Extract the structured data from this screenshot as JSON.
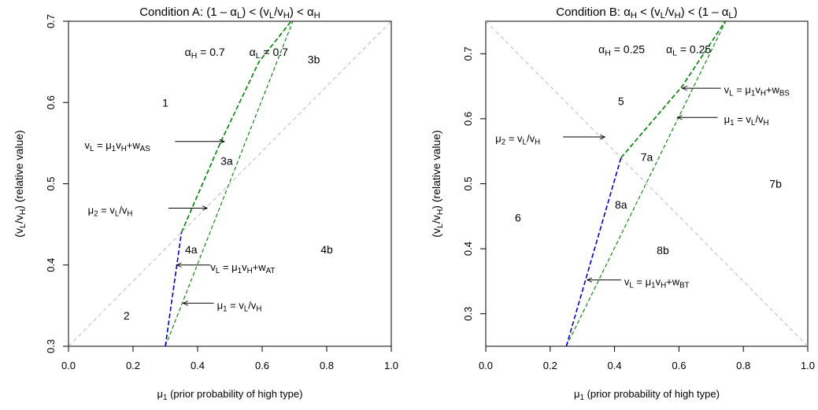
{
  "chart_data": [
    {
      "type": "line",
      "title": "Condition A: (1 – αL) < (vL/vH) < αH",
      "title_parts": [
        "Condition A: (1 – ",
        "α",
        "L",
        ") < (v",
        "L",
        "/v",
        "H",
        ") < ",
        "α",
        "H"
      ],
      "xlabel": "μ1 (prior probability of high type)",
      "xlabel_parts": [
        "μ",
        "1",
        " (prior probability of high type)"
      ],
      "ylabel": "(vL/vH) (relative value)",
      "ylabel_parts": [
        "(v",
        "L",
        "/v",
        "H",
        ") (relative value)"
      ],
      "xlim": [
        0,
        1
      ],
      "ylim": [
        0.3,
        0.7
      ],
      "xticks": [
        0.0,
        0.2,
        0.4,
        0.6,
        0.8,
        1.0
      ],
      "yticks": [
        0.3,
        0.4,
        0.5,
        0.6,
        0.7
      ],
      "grid": false,
      "series": [
        {
          "color": "#bbbbbb",
          "dash": "5,4",
          "width": 1,
          "points": [
            [
              0,
              0.3
            ],
            [
              1,
              0.7
            ]
          ]
        },
        {
          "color": "#008000",
          "dash": "6,3",
          "width": 1.6,
          "points": [
            [
              0.35,
              0.44
            ],
            [
              0.47,
              0.55
            ],
            [
              0.59,
              0.65
            ],
            [
              0.7,
              0.705
            ]
          ]
        },
        {
          "color": "#008000",
          "dash": "5,3",
          "width": 1.1,
          "points": [
            [
              0.3,
              0.3
            ],
            [
              0.7,
              0.705
            ]
          ]
        },
        {
          "color": "#0000c8",
          "dash": "6,3",
          "width": 1.6,
          "points": [
            [
              0.3,
              0.3
            ],
            [
              0.35,
              0.44
            ]
          ]
        }
      ],
      "params": [
        {
          "parts": [
            "α",
            "H",
            " =  0.7"
          ],
          "x": 0.36,
          "y": 0.662
        },
        {
          "parts": [
            "α",
            "L",
            " =  0.7"
          ],
          "x": 0.56,
          "y": 0.662
        }
      ],
      "regions": [
        {
          "label": "1",
          "x": 0.3,
          "y": 0.6
        },
        {
          "label": "3b",
          "x": 0.76,
          "y": 0.653
        },
        {
          "label": "3a",
          "x": 0.49,
          "y": 0.528
        },
        {
          "label": "4a",
          "x": 0.38,
          "y": 0.419
        },
        {
          "label": "4b",
          "x": 0.8,
          "y": 0.419
        },
        {
          "label": "2",
          "x": 0.18,
          "y": 0.338
        }
      ],
      "annotations": [
        {
          "parts": [
            "v",
            "L",
            " = ",
            "μ",
            "1",
            "v",
            "H",
            "+w",
            "AS"
          ],
          "text_x": 0.05,
          "text_y": 0.548,
          "from": [
            0.33,
            0.552
          ],
          "to": [
            0.483,
            0.552
          ]
        },
        {
          "parts": [
            "μ",
            "2",
            " = v",
            "L",
            "/v",
            "H"
          ],
          "text_x": 0.06,
          "text_y": 0.468,
          "from": [
            0.31,
            0.47
          ],
          "to": [
            0.43,
            0.47
          ]
        },
        {
          "parts": [
            "v",
            "L",
            " = ",
            "μ",
            "1",
            "v",
            "H",
            "+w",
            "AT"
          ],
          "text_x": 0.44,
          "text_y": 0.398,
          "from": [
            0.44,
            0.4
          ],
          "to": [
            0.335,
            0.4
          ]
        },
        {
          "parts": [
            "μ",
            "1",
            " = v",
            "L",
            "/v",
            "H"
          ],
          "text_x": 0.46,
          "text_y": 0.351,
          "from": [
            0.45,
            0.353
          ],
          "to": [
            0.355,
            0.353
          ]
        }
      ]
    },
    {
      "type": "line",
      "title": "Condition B: αH < (vL/vH) < (1 – αL)",
      "title_parts": [
        "Condition B: ",
        "α",
        "H",
        " < (v",
        "L",
        "/v",
        "H",
        ") < (1 – ",
        "α",
        "L",
        ")"
      ],
      "xlabel": "μ1 (prior probability of high type)",
      "xlabel_parts": [
        "μ",
        "1",
        " (prior probability of high type)"
      ],
      "ylabel": "(vL/vH) (relative value)",
      "ylabel_parts": [
        "(v",
        "L",
        "/v",
        "H",
        ") (relative value)"
      ],
      "xlim": [
        0,
        1
      ],
      "ylim": [
        0.25,
        0.75
      ],
      "xticks": [
        0.0,
        0.2,
        0.4,
        0.6,
        0.8,
        1.0
      ],
      "yticks": [
        0.3,
        0.4,
        0.5,
        0.6,
        0.7
      ],
      "grid": false,
      "series": [
        {
          "color": "#bbbbbb",
          "dash": "5,4",
          "width": 1,
          "points": [
            [
              0,
              0.75
            ],
            [
              1,
              0.25
            ]
          ]
        },
        {
          "color": "#008000",
          "dash": "6,3",
          "width": 1.6,
          "points": [
            [
              0.42,
              0.54
            ],
            [
              0.61,
              0.65
            ],
            [
              0.75,
              0.755
            ]
          ]
        },
        {
          "color": "#008000",
          "dash": "5,3",
          "width": 1.1,
          "points": [
            [
              0.25,
              0.25
            ],
            [
              0.75,
              0.755
            ]
          ]
        },
        {
          "color": "#0000c8",
          "dash": "6,3",
          "width": 1.6,
          "points": [
            [
              0.25,
              0.25
            ],
            [
              0.42,
              0.54
            ]
          ]
        }
      ],
      "params": [
        {
          "parts": [
            "α",
            "H",
            " = 0.25"
          ],
          "x": 0.35,
          "y": 0.707
        },
        {
          "parts": [
            "α",
            "L",
            " = 0.25"
          ],
          "x": 0.56,
          "y": 0.707
        }
      ],
      "regions": [
        {
          "label": "5",
          "x": 0.42,
          "y": 0.627
        },
        {
          "label": "7a",
          "x": 0.5,
          "y": 0.541
        },
        {
          "label": "7b",
          "x": 0.9,
          "y": 0.5
        },
        {
          "label": "8a",
          "x": 0.42,
          "y": 0.468
        },
        {
          "label": "6",
          "x": 0.1,
          "y": 0.448
        },
        {
          "label": "8b",
          "x": 0.55,
          "y": 0.398
        }
      ],
      "annotations": [
        {
          "parts": [
            "v",
            "L",
            " = ",
            "μ",
            "1",
            "v",
            "H",
            "+w",
            "BS"
          ],
          "text_x": 0.74,
          "text_y": 0.645,
          "from": [
            0.73,
            0.647
          ],
          "to": [
            0.61,
            0.647
          ]
        },
        {
          "parts": [
            "μ",
            "1",
            " = v",
            "L",
            "/v",
            "H"
          ],
          "text_x": 0.74,
          "text_y": 0.6,
          "from": [
            0.72,
            0.602
          ],
          "to": [
            0.595,
            0.602
          ]
        },
        {
          "parts": [
            "μ",
            "2",
            " = v",
            "L",
            "/v",
            "H"
          ],
          "text_x": 0.03,
          "text_y": 0.57,
          "from": [
            0.24,
            0.572
          ],
          "to": [
            0.37,
            0.572
          ]
        },
        {
          "parts": [
            "v",
            "L",
            " = ",
            "μ",
            "1",
            "v",
            "H",
            "+w",
            "BT"
          ],
          "text_x": 0.43,
          "text_y": 0.35,
          "from": [
            0.42,
            0.352
          ],
          "to": [
            0.315,
            0.352
          ]
        }
      ]
    }
  ]
}
